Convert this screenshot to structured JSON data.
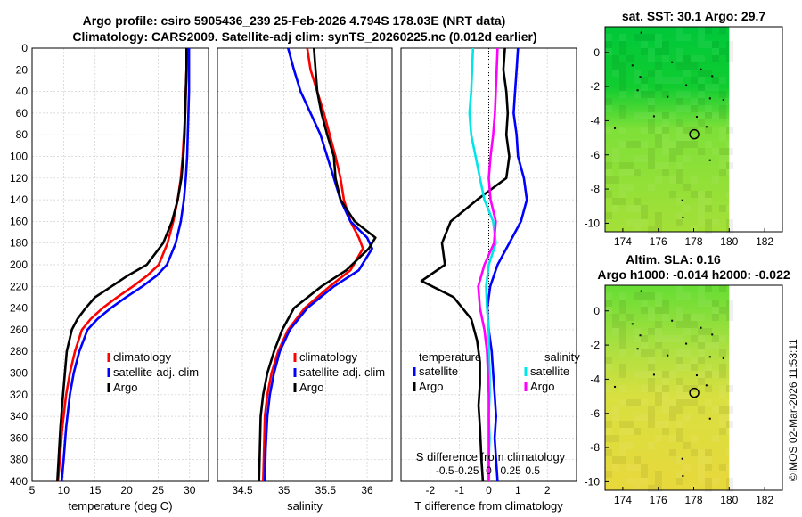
{
  "figure": {
    "title_line1": "Argo profile: csiro 5905436_239 25-Feb-2026 4.794S 178.03E (NRT data)",
    "title_line2": "Climatology: CARS2009. Satellite-adj clim: synTS_20260225.nc (0.012d earlier)",
    "stamp": "©IMOS 02-Mar-2026 11:53:11",
    "colors": {
      "climatology": "#ff0000",
      "satellite": "#0000ff",
      "argo": "#000000",
      "sal_satellite": "#00e5e5",
      "sal_argo": "#ff00ff"
    }
  },
  "chart_data": [
    {
      "id": "temperature",
      "type": "line",
      "xlabel": "temperature (deg C)",
      "ylabel": "",
      "xlim": [
        5,
        33
      ],
      "ylim": [
        0,
        400
      ],
      "xticks": [
        5,
        10,
        15,
        20,
        25,
        30
      ],
      "yticks": [
        0,
        20,
        40,
        60,
        80,
        100,
        120,
        140,
        160,
        180,
        200,
        220,
        240,
        260,
        280,
        300,
        320,
        340,
        360,
        380,
        400
      ],
      "legend": [
        "climatology",
        "satellite-adj. clim",
        "Argo"
      ],
      "series": [
        {
          "name": "climatology",
          "color": "#ff0000",
          "x": [
            29.6,
            29.5,
            29.4,
            29.3,
            29.1,
            28.9,
            28.6,
            28.1,
            27.4,
            26.5,
            25.1,
            23.3,
            21.0,
            18.5,
            16.2,
            14.3,
            12.9,
            11.8,
            11.0,
            10.4,
            9.8,
            9.4,
            9.1
          ],
          "y": [
            0,
            20,
            40,
            60,
            80,
            100,
            120,
            140,
            160,
            180,
            200,
            210,
            220,
            230,
            240,
            250,
            260,
            280,
            300,
            320,
            350,
            380,
            400
          ]
        },
        {
          "name": "satellite-adj. clim",
          "color": "#0000ff",
          "x": [
            29.9,
            29.9,
            29.9,
            29.8,
            29.7,
            29.6,
            29.4,
            29.1,
            28.6,
            27.8,
            26.4,
            24.8,
            22.5,
            19.9,
            17.5,
            15.4,
            13.8,
            12.5,
            11.6,
            11.0,
            10.4,
            10.0,
            9.7
          ],
          "y": [
            0,
            20,
            40,
            60,
            80,
            100,
            120,
            140,
            160,
            180,
            200,
            210,
            220,
            230,
            240,
            250,
            260,
            280,
            300,
            320,
            350,
            380,
            400
          ]
        },
        {
          "name": "Argo",
          "color": "#000000",
          "x": [
            29.5,
            29.5,
            29.4,
            29.3,
            29.2,
            29.0,
            28.7,
            28.1,
            27.2,
            25.8,
            23.2,
            20.2,
            17.6,
            15.0,
            13.5,
            12.2,
            11.3,
            10.5,
            10.2,
            9.9,
            9.5,
            9.2,
            9.0
          ],
          "y": [
            0,
            20,
            40,
            60,
            80,
            100,
            120,
            140,
            160,
            180,
            200,
            210,
            220,
            230,
            240,
            250,
            260,
            280,
            300,
            320,
            350,
            380,
            400
          ]
        }
      ]
    },
    {
      "id": "salinity",
      "type": "line",
      "xlabel": "salinity",
      "xlim": [
        34.2,
        36.3
      ],
      "ylim": [
        0,
        400
      ],
      "xticks": [
        34.5,
        35,
        35.5,
        36
      ],
      "legend": [
        "climatology",
        "satellite-adj. clim",
        "Argo"
      ],
      "series": [
        {
          "name": "climatology",
          "color": "#ff0000",
          "x": [
            35.28,
            35.32,
            35.4,
            35.48,
            35.55,
            35.62,
            35.68,
            35.72,
            35.8,
            35.9,
            35.95,
            35.8,
            35.55,
            35.25,
            35.05,
            34.93,
            34.85,
            34.8,
            34.77,
            34.76,
            34.75
          ],
          "y": [
            0,
            20,
            40,
            60,
            80,
            100,
            120,
            140,
            160,
            175,
            185,
            205,
            220,
            240,
            260,
            280,
            300,
            320,
            340,
            370,
            400
          ]
        },
        {
          "name": "satellite-adj. clim",
          "color": "#0000ff",
          "x": [
            35.05,
            35.12,
            35.2,
            35.32,
            35.44,
            35.52,
            35.6,
            35.68,
            35.8,
            36.0,
            36.06,
            35.9,
            35.6,
            35.28,
            35.07,
            34.95,
            34.88,
            34.83,
            34.8,
            34.78,
            34.77
          ],
          "y": [
            0,
            20,
            40,
            60,
            80,
            100,
            120,
            140,
            160,
            175,
            185,
            205,
            220,
            240,
            260,
            280,
            300,
            320,
            340,
            370,
            400
          ]
        },
        {
          "name": "Argo",
          "color": "#000000",
          "x": [
            35.36,
            35.38,
            35.4,
            35.45,
            35.52,
            35.6,
            35.62,
            35.68,
            35.85,
            36.1,
            36.02,
            35.75,
            35.45,
            35.12,
            34.98,
            34.88,
            34.8,
            34.75,
            34.72,
            34.71,
            34.7
          ],
          "y": [
            0,
            20,
            40,
            60,
            80,
            100,
            120,
            140,
            160,
            175,
            185,
            205,
            220,
            240,
            260,
            280,
            300,
            320,
            340,
            370,
            400
          ]
        }
      ]
    },
    {
      "id": "differences",
      "type": "line",
      "xlabel": "T difference from climatology",
      "x2label": "S difference from climatology",
      "xlim": [
        -3,
        3
      ],
      "x2lim": [
        -1,
        1
      ],
      "ylim": [
        0,
        400
      ],
      "xticks": [
        -2,
        -1,
        0,
        1,
        2
      ],
      "x2ticks": [
        -0.5,
        -0.25,
        0,
        0.25,
        0.5
      ],
      "x2ticklabels": [
        "-0.5",
        "-0.25",
        "0",
        "0.25",
        "0.5"
      ],
      "legend_groups": [
        "temperature",
        "salinity"
      ],
      "legend": [
        "satellite",
        "Argo",
        "satellite",
        "Argo"
      ],
      "series": [
        {
          "name": "temperature satellite",
          "color": "#0000ff",
          "axis": "T",
          "x": [
            1.0,
            0.95,
            0.9,
            0.85,
            0.95,
            1.0,
            1.2,
            1.3,
            1.1,
            0.7,
            0.3,
            0.05,
            -0.05,
            0.0,
            0.1,
            0.15,
            0.2,
            0.25,
            0.2,
            0.25,
            0.3
          ],
          "y": [
            0,
            20,
            40,
            60,
            80,
            100,
            120,
            140,
            160,
            180,
            200,
            220,
            240,
            260,
            280,
            300,
            320,
            340,
            360,
            380,
            400
          ]
        },
        {
          "name": "temperature Argo",
          "color": "#000000",
          "axis": "T",
          "x": [
            0.55,
            0.5,
            0.6,
            0.65,
            0.6,
            0.7,
            0.6,
            -0.4,
            -1.3,
            -1.6,
            -1.5,
            -2.3,
            -1.2,
            -0.6,
            -0.4,
            -0.3,
            -0.3,
            -0.35,
            -0.3,
            -0.25,
            -0.2
          ],
          "y": [
            0,
            20,
            40,
            60,
            80,
            100,
            120,
            140,
            160,
            180,
            200,
            215,
            230,
            250,
            270,
            290,
            310,
            330,
            350,
            380,
            400
          ]
        },
        {
          "name": "salinity satellite",
          "color": "#00e5e5",
          "axis": "S",
          "x": [
            -0.18,
            -0.19,
            -0.2,
            -0.22,
            -0.2,
            -0.15,
            -0.1,
            -0.05,
            0.05,
            0.08,
            0.0,
            -0.03,
            -0.02,
            0.0,
            0.0,
            0.01,
            0.01,
            0.0,
            0.01,
            0.0,
            0.0
          ],
          "y": [
            0,
            20,
            40,
            60,
            80,
            100,
            120,
            140,
            160,
            180,
            200,
            220,
            240,
            260,
            280,
            300,
            320,
            340,
            360,
            380,
            400
          ]
        },
        {
          "name": "salinity Argo",
          "color": "#ff00ff",
          "axis": "S",
          "x": [
            0.1,
            0.09,
            0.08,
            0.07,
            0.05,
            0.02,
            0.0,
            0.02,
            0.08,
            0.06,
            -0.05,
            -0.12,
            -0.1,
            -0.05,
            -0.02,
            -0.01,
            0.0,
            0.0,
            0.0,
            0.0,
            0.0
          ],
          "y": [
            0,
            20,
            40,
            60,
            80,
            100,
            120,
            140,
            160,
            180,
            200,
            220,
            240,
            260,
            280,
            300,
            320,
            340,
            360,
            380,
            400
          ]
        }
      ]
    },
    {
      "id": "sst_map",
      "type": "heatmap",
      "title": "sat. SST: 30.1 Argo: 29.7",
      "xlim": [
        173,
        183
      ],
      "ylim": [
        -10.5,
        1.5
      ],
      "data_xlim": [
        173,
        180
      ],
      "xticks": [
        174,
        176,
        178,
        180,
        182
      ],
      "yticks": [
        0,
        -2,
        -4,
        -6,
        -8,
        -10
      ],
      "argo_position": {
        "lon": 178.03,
        "lat": -4.794
      },
      "gradient": [
        {
          "lat": 1.5,
          "color": "#00c83a"
        },
        {
          "lat": -2.0,
          "color": "#10cc30"
        },
        {
          "lat": -4.5,
          "color": "#7ee038"
        },
        {
          "lat": -10.5,
          "color": "#a4e038"
        }
      ]
    },
    {
      "id": "sla_map",
      "type": "heatmap",
      "title_line1": "Altim. SLA: 0.16",
      "title_line2": "Argo h1000: -0.014 h2000: -0.022",
      "xlim": [
        173,
        183
      ],
      "ylim": [
        -10.5,
        1.5
      ],
      "data_xlim": [
        173,
        180
      ],
      "xticks": [
        174,
        176,
        178,
        180,
        182
      ],
      "yticks": [
        0,
        -2,
        -4,
        -6,
        -8,
        -10
      ],
      "argo_position": {
        "lon": 178.03,
        "lat": -4.794
      },
      "gradient": [
        {
          "lat": 1.5,
          "color": "#66dd33"
        },
        {
          "lat": -2.0,
          "color": "#a8e040"
        },
        {
          "lat": -5.0,
          "color": "#d8e040"
        },
        {
          "lat": -10.5,
          "color": "#e8d83c"
        }
      ]
    }
  ]
}
